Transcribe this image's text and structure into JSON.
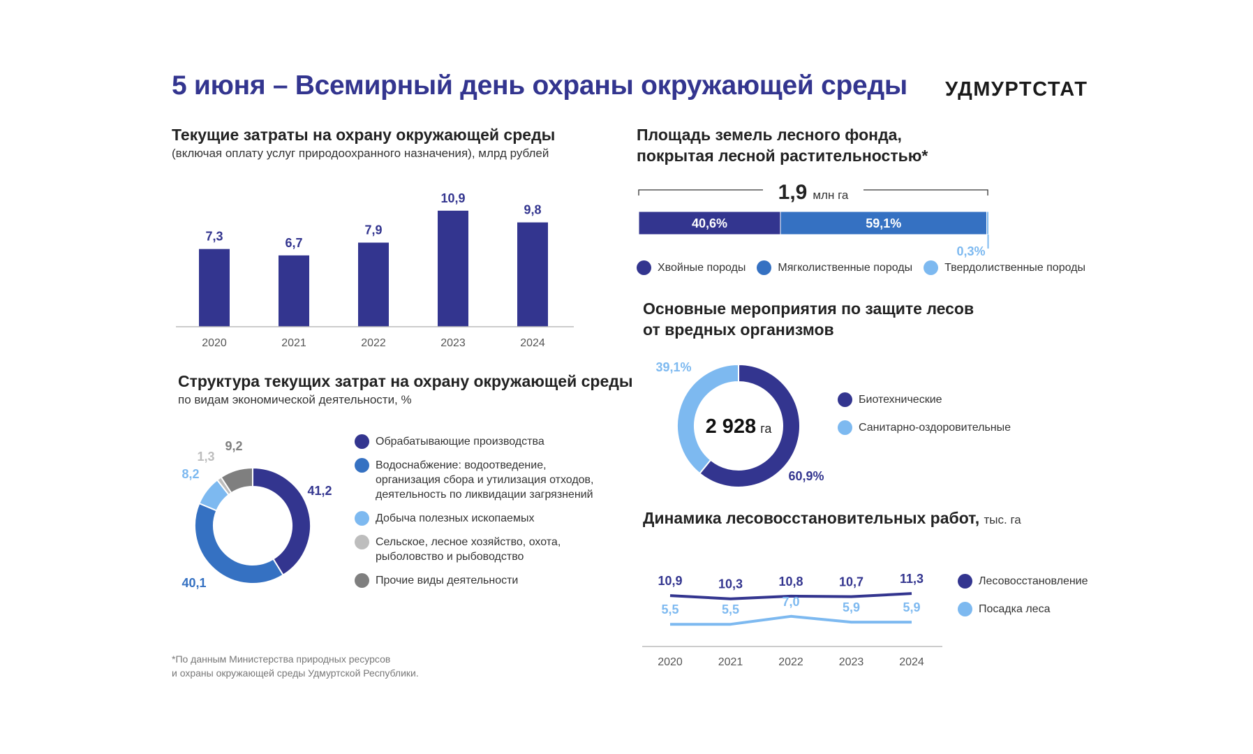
{
  "header": {
    "title": "5 июня – Всемирный день охраны окружающей среды",
    "brand": "УДМУРТСТАТ"
  },
  "colors": {
    "dark_blue": "#33358f",
    "mid_blue": "#3571c2",
    "light_blue": "#7db9f0",
    "light_gray": "#bdbdbd",
    "gray": "#7f7f7f"
  },
  "sections": {
    "costs": {
      "title": "Текущие затраты на охрану окружающей среды",
      "subtitle": "(включая оплату услуг природоохранного назначения), млрд рублей"
    },
    "structure": {
      "title": "Структура текущих затрат на охрану окружающей среды",
      "subtitle": "по видам экономической деятельности, %"
    },
    "forest_area": {
      "title_line1": "Площадь земель лесного фонда,",
      "title_line2": "покрытая лесной растительностью*"
    },
    "protection": {
      "title_line1": "Основные мероприятия по защите лесов",
      "title_line2": "от вредных организмов"
    },
    "reforestation": {
      "title": "Динамика лесовосстановительных работ,",
      "unit": "тыс. га"
    }
  },
  "footnote": {
    "line1": "*По данным Министерства природных ресурсов",
    "line2": "и охраны окружающей среды Удмуртской Республики."
  },
  "chart_data": [
    {
      "type": "bar",
      "categories": [
        "2020",
        "2021",
        "2022",
        "2023",
        "2024"
      ],
      "values": [
        7.3,
        6.7,
        7.9,
        10.9,
        9.8
      ],
      "value_labels": [
        "7,3",
        "6,7",
        "7,9",
        "10,9",
        "9,8"
      ],
      "ylim": [
        0,
        12
      ],
      "grid": false
    },
    {
      "type": "pie",
      "donut": true,
      "categories": [
        "Обрабатывающие производства",
        "Водоснабжение: водоотведение, организация сбора и утилизация отходов, деятельность по ликвидации загрязнений",
        "Добыча полезных ископаемых",
        "Сельское, лесное хозяйство, охота, рыболовство и рыбоводство",
        "Прочие виды деятельности"
      ],
      "legend_lines": [
        [
          "Обрабатывающие производства"
        ],
        [
          "Водоснабжение: водоотведение,",
          "организация сбора и утилизация отходов,",
          "деятельность по ликвидации загрязнений"
        ],
        [
          "Добыча полезных ископаемых"
        ],
        [
          "Сельское, лесное хозяйство, охота,",
          "рыболовство и рыбоводство"
        ],
        [
          "Прочие виды деятельности"
        ]
      ],
      "values": [
        41.2,
        40.1,
        8.2,
        1.3,
        9.2
      ],
      "value_labels": [
        "41,2",
        "40,1",
        "8,2",
        "1,3",
        "9,2"
      ],
      "colors": [
        "#33358f",
        "#3571c2",
        "#7db9f0",
        "#bdbdbd",
        "#7f7f7f"
      ],
      "legend_position": "right"
    },
    {
      "type": "bar",
      "stacked": true,
      "orientation": "horizontal",
      "total_value": "1,9",
      "total_unit": "млн га",
      "categories": [
        "Хвойные породы",
        "Мягколиственные породы",
        "Твердолиственные породы"
      ],
      "values": [
        40.6,
        59.1,
        0.3
      ],
      "value_labels": [
        "40,6%",
        "59,1%",
        "0,3%"
      ],
      "colors": [
        "#33358f",
        "#3571c2",
        "#7db9f0"
      ],
      "legend_position": "bottom"
    },
    {
      "type": "pie",
      "donut": true,
      "center_value": "2 928",
      "center_unit": "га",
      "categories": [
        "Биотехнические",
        "Санитарно-оздоровительные"
      ],
      "values": [
        60.9,
        39.1
      ],
      "value_labels": [
        "60,9%",
        "39,1%"
      ],
      "colors": [
        "#33358f",
        "#7db9f0"
      ],
      "legend_position": "right"
    },
    {
      "type": "line",
      "x": [
        "2020",
        "2021",
        "2022",
        "2023",
        "2024"
      ],
      "series": [
        {
          "name": "Лесовосстановление",
          "values": [
            10.9,
            10.3,
            10.8,
            10.7,
            11.3
          ],
          "labels": [
            "10,9",
            "10,3",
            "10,8",
            "10,7",
            "11,3"
          ],
          "color": "#33358f"
        },
        {
          "name": "Посадка леса",
          "values": [
            5.5,
            5.5,
            7.0,
            5.9,
            5.9
          ],
          "labels": [
            "5,5",
            "5,5",
            "7,0",
            "5,9",
            "5,9"
          ],
          "color": "#7db9f0"
        }
      ],
      "legend_position": "right"
    }
  ]
}
